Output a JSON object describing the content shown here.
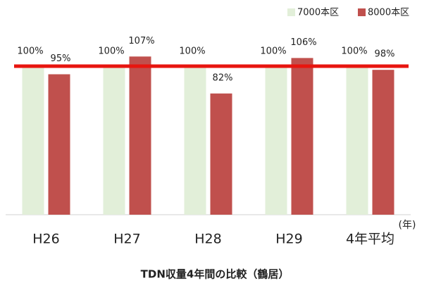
{
  "chart_data": {
    "type": "bar",
    "title": "TDN収量4年間の比較（鶴居）",
    "x_label": "(年)",
    "categories": [
      "H26",
      "H27",
      "H28",
      "H29",
      "4年平均"
    ],
    "series": [
      {
        "name": "7000本区",
        "color": "#e2efd9",
        "values": [
          100,
          100,
          100,
          100,
          100
        ],
        "value_labels": [
          "100%",
          "100%",
          "100%",
          "100%",
          "100%"
        ]
      },
      {
        "name": "8000本区",
        "color": "#c0504d",
        "values": [
          95,
          107,
          82,
          106,
          98
        ],
        "value_labels": [
          "95%",
          "107%",
          "82%",
          "106%",
          "98%"
        ]
      }
    ],
    "reference_line": 100,
    "reference_color": "#e8150f",
    "ylim": [
      0,
      140
    ],
    "legend": "top-right"
  }
}
